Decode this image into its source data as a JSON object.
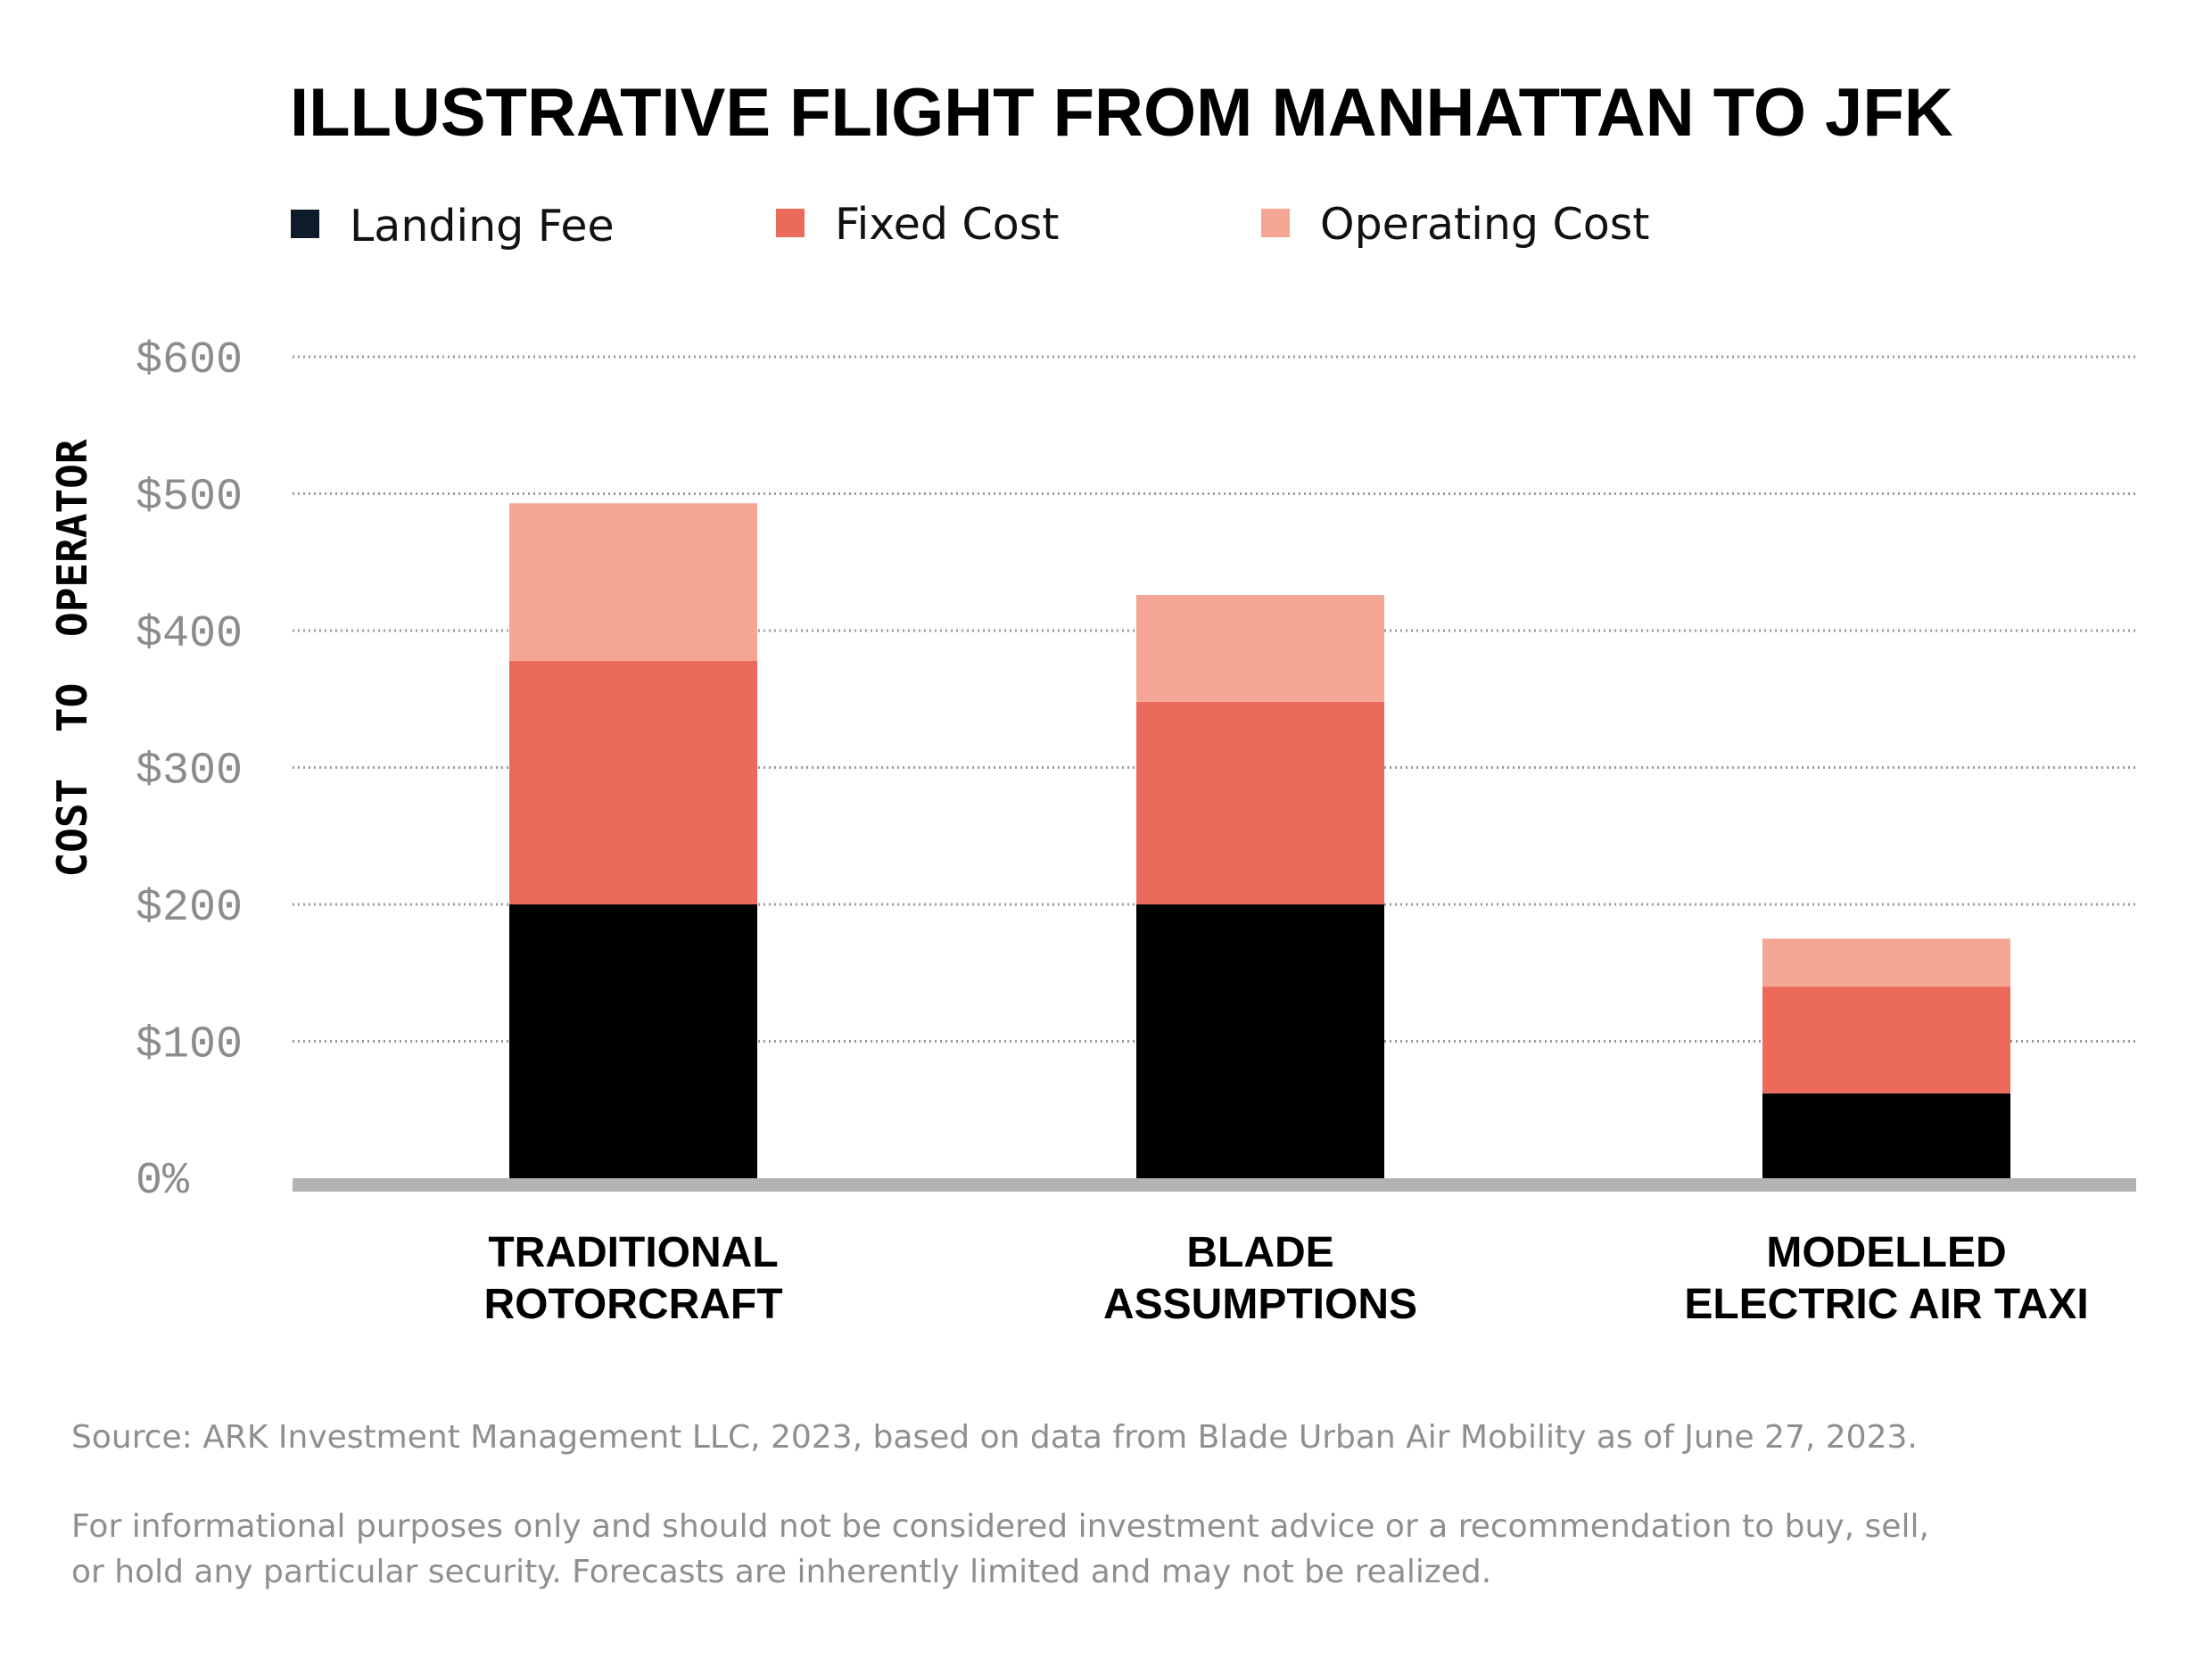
{
  "chart_data": {
    "type": "bar",
    "stacked": true,
    "title": "ILLUSTRATIVE FLIGHT FROM MANHATTAN TO JFK",
    "ylabel": "COST TO OPERATOR",
    "xlabel": "",
    "categories": [
      [
        "TRADITIONAL",
        "ROTORCRAFT"
      ],
      [
        "BLADE",
        "ASSUMPTIONS"
      ],
      [
        "MODELLED",
        "ELECTRIC AIR TAXI"
      ]
    ],
    "series": [
      {
        "name": "Landing Fee",
        "color": "#000000",
        "values": [
          200,
          200,
          62
        ]
      },
      {
        "name": "Fixed Cost",
        "color": "#ec6a5c",
        "values": [
          178,
          148,
          78
        ]
      },
      {
        "name": "Operating Cost",
        "color": "#f4a594",
        "values": [
          115,
          78,
          35
        ]
      }
    ],
    "ylim": [
      0,
      600
    ],
    "yticks": [
      {
        "value": 0,
        "label": "0%"
      },
      {
        "value": 100,
        "label": "$100"
      },
      {
        "value": 200,
        "label": "$200"
      },
      {
        "value": 300,
        "label": "$300"
      },
      {
        "value": 400,
        "label": "$400"
      },
      {
        "value": 500,
        "label": "$500"
      },
      {
        "value": 600,
        "label": "$600"
      }
    ],
    "grid": true,
    "legend_position": "top",
    "colors": {
      "grid": "#999999",
      "baseline": "#b3b3b3"
    }
  },
  "footnotes": {
    "source": "Source: ARK Investment Management LLC, 2023, based on data from Blade Urban Air Mobility as of June 27, 2023.",
    "disclaimer": [
      "For informational purposes only and should not be considered investment advice or a recommendation to buy, sell,",
      "or hold any particular security. Forecasts are inherently limited and may not be realized."
    ]
  }
}
